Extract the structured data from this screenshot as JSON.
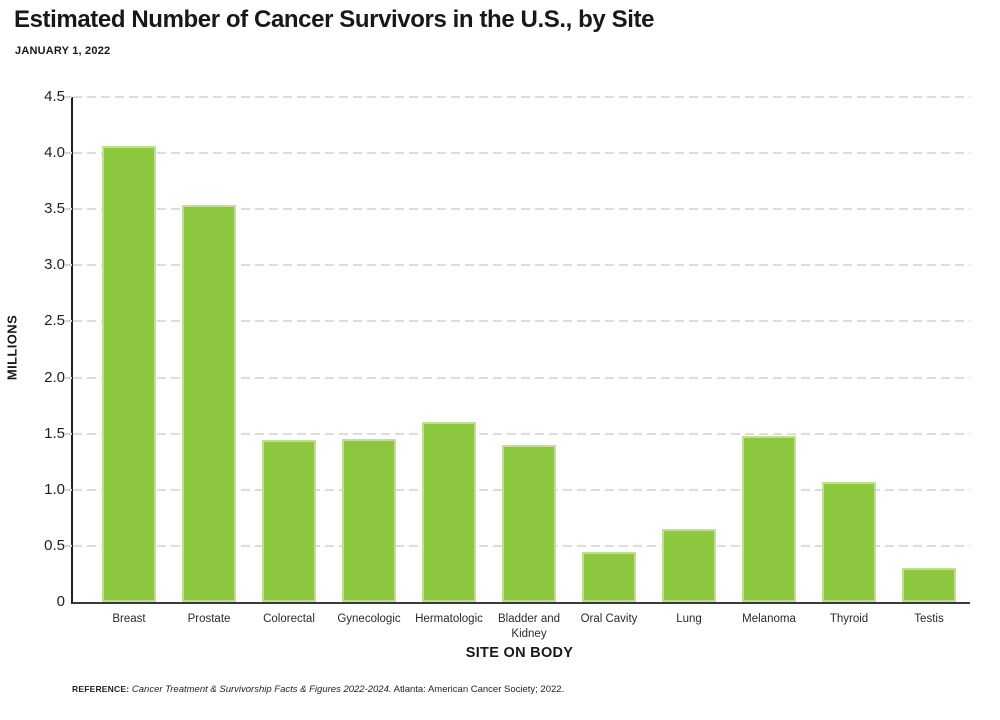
{
  "header": {
    "title": "Estimated Number of Cancer Survivors in the U.S., by Site",
    "subtitle": "JANUARY 1, 2022"
  },
  "chart_data": {
    "type": "bar",
    "title": "Estimated Number of Cancer Survivors in the U.S., by Site",
    "subtitle": "JANUARY 1, 2022",
    "categories": [
      "Breast",
      "Prostate",
      "Colorectal",
      "Gynecologic",
      "Hermatologic",
      "Bladder and Kidney",
      "Oral Cavity",
      "Lung",
      "Melanoma",
      "Thyroid",
      "Testis"
    ],
    "values": [
      4.06,
      3.54,
      1.44,
      1.45,
      1.6,
      1.4,
      0.45,
      0.65,
      1.48,
      1.07,
      0.3
    ],
    "xlabel": "SITE ON BODY",
    "ylabel": "MILLIONS",
    "ylim": [
      0,
      4.5
    ],
    "ytick_step": 0.5,
    "ytick_labels": [
      "0",
      "0.5",
      "1.0",
      "1.5",
      "2.0",
      "2.5",
      "3.0",
      "3.5",
      "4.0",
      "4.5"
    ],
    "grid": "horizontal-dashed",
    "legend": "none",
    "bar_color": "#8DC63F"
  },
  "footer": {
    "reference_label": "REFERENCE:",
    "reference_source": "Cancer Treatment & Survivorship Facts & Figures 2022-2024.",
    "reference_rest": "Atlanta: American Cancer Society; 2022."
  },
  "colors": {
    "bar": "#8DC63F",
    "grid": "#DCDCDC",
    "axis": "#231F20",
    "text": "#231F20",
    "background": "#FFFFFF"
  }
}
